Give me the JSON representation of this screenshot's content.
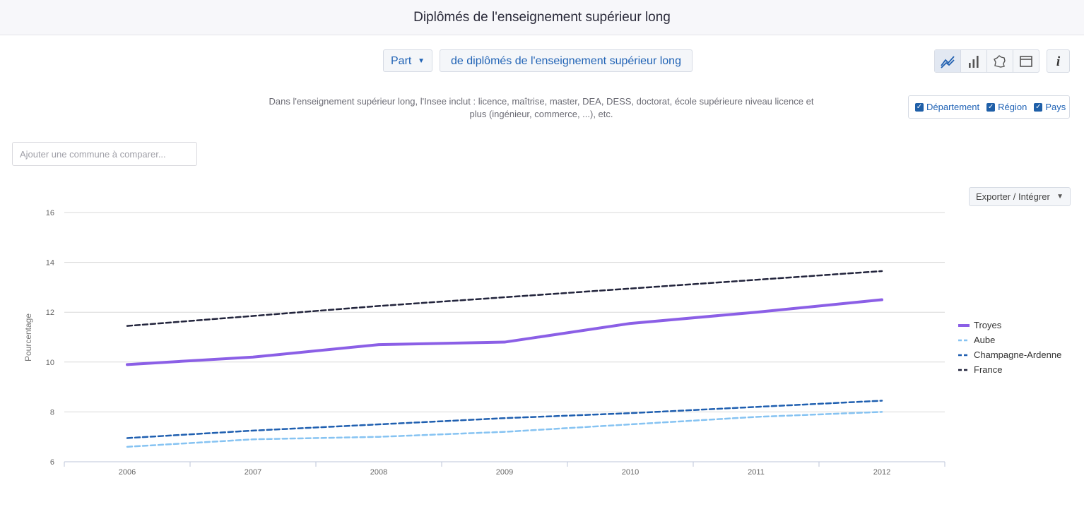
{
  "header": {
    "title": "Diplômés de l'enseignement supérieur long"
  },
  "selectors": {
    "part_label": "Part",
    "indicator_label": "de diplômés de l'enseignement supérieur long"
  },
  "toolbar": {
    "buttons": [
      "line-chart-icon",
      "bar-chart-icon",
      "map-icon",
      "table-icon"
    ],
    "info_label": "i"
  },
  "description": "Dans l'enseignement supérieur long, l'Insee inclut : licence, maîtrise, master, DEA, DESS, doctorat, école supérieure niveau licence et plus (ingénieur, commerce, ...), etc.",
  "filters": {
    "departement": "Département",
    "region": "Région",
    "pays": "Pays"
  },
  "compare": {
    "placeholder": "Ajouter une commune à comparer..."
  },
  "export": {
    "label": "Exporter / Intégrer"
  },
  "colors": {
    "troyes": "#8b5fe6",
    "aube": "#86c3f2",
    "champagne": "#1f5fb0",
    "france": "#22243c",
    "grid": "#d8d8d8",
    "axis_text": "#666666"
  },
  "chart_data": {
    "type": "line",
    "x": [
      "2006",
      "2007",
      "2008",
      "2009",
      "2010",
      "2011",
      "2012"
    ],
    "ylabel": "Pourcentage",
    "ylim": [
      6,
      16
    ],
    "yticks": [
      "6",
      "8",
      "10",
      "12",
      "14",
      "16"
    ],
    "grid": true,
    "legend_position": "right",
    "series": [
      {
        "name": "Troyes",
        "values": [
          9.9,
          10.2,
          10.7,
          10.8,
          11.55,
          12.0,
          12.5
        ],
        "style": "solid",
        "color": "#8b5fe6"
      },
      {
        "name": "Aube",
        "values": [
          6.6,
          6.9,
          7.0,
          7.2,
          7.5,
          7.8,
          8.0
        ],
        "style": "dashed",
        "color": "#86c3f2"
      },
      {
        "name": "Champagne-Ardenne",
        "values": [
          6.95,
          7.25,
          7.5,
          7.75,
          7.95,
          8.2,
          8.45
        ],
        "style": "dashed",
        "color": "#1f5fb0"
      },
      {
        "name": "France",
        "values": [
          11.45,
          11.85,
          12.25,
          12.6,
          12.95,
          13.3,
          13.65
        ],
        "style": "dashed",
        "color": "#22243c"
      }
    ]
  }
}
